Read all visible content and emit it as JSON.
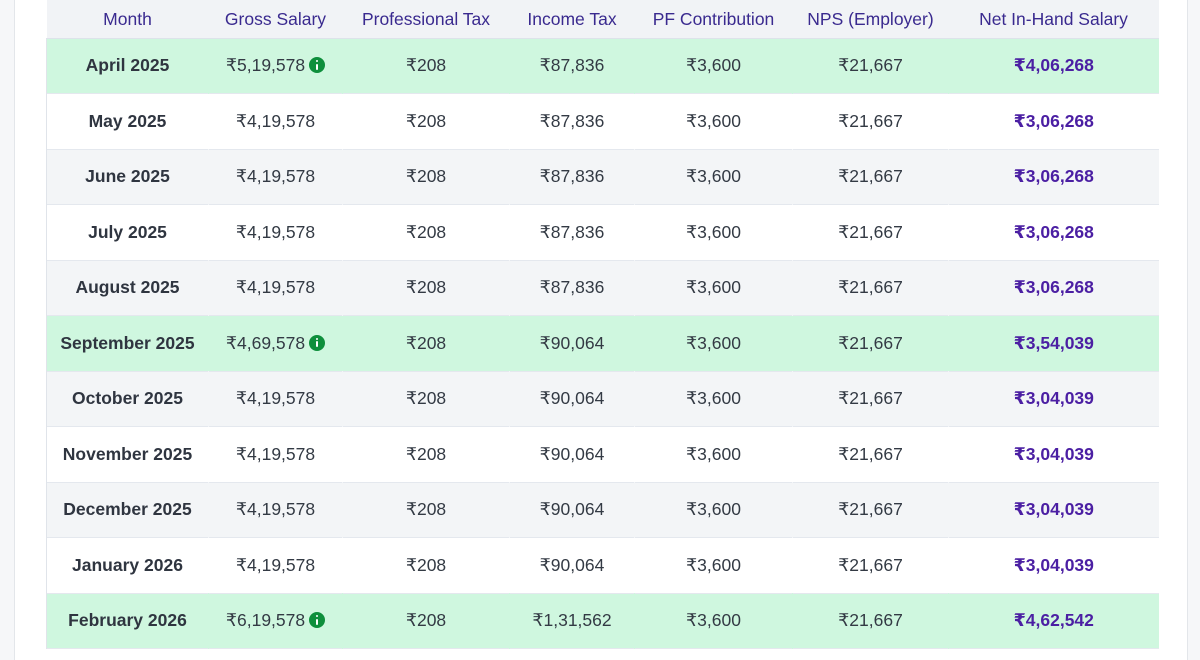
{
  "table": {
    "headers": [
      "Month",
      "Gross Salary",
      "Professional Tax",
      "Income Tax",
      "PF Contribution",
      "NPS (Employer)",
      "Net In-Hand Salary"
    ],
    "rows": [
      {
        "month": "April 2025",
        "gross": "₹5,19,578",
        "pt": "₹208",
        "it": "₹87,836",
        "pf": "₹3,600",
        "nps": "₹21,667",
        "net": "₹4,06,268"
      },
      {
        "month": "May 2025",
        "gross": "₹4,19,578",
        "pt": "₹208",
        "it": "₹87,836",
        "pf": "₹3,600",
        "nps": "₹21,667",
        "net": "₹3,06,268"
      },
      {
        "month": "June 2025",
        "gross": "₹4,19,578",
        "pt": "₹208",
        "it": "₹87,836",
        "pf": "₹3,600",
        "nps": "₹21,667",
        "net": "₹3,06,268"
      },
      {
        "month": "July 2025",
        "gross": "₹4,19,578",
        "pt": "₹208",
        "it": "₹87,836",
        "pf": "₹3,600",
        "nps": "₹21,667",
        "net": "₹3,06,268"
      },
      {
        "month": "August 2025",
        "gross": "₹4,19,578",
        "pt": "₹208",
        "it": "₹87,836",
        "pf": "₹3,600",
        "nps": "₹21,667",
        "net": "₹3,06,268"
      },
      {
        "month": "September 2025",
        "gross": "₹4,69,578",
        "pt": "₹208",
        "it": "₹90,064",
        "pf": "₹3,600",
        "nps": "₹21,667",
        "net": "₹3,54,039"
      },
      {
        "month": "October 2025",
        "gross": "₹4,19,578",
        "pt": "₹208",
        "it": "₹90,064",
        "pf": "₹3,600",
        "nps": "₹21,667",
        "net": "₹3,04,039"
      },
      {
        "month": "November 2025",
        "gross": "₹4,19,578",
        "pt": "₹208",
        "it": "₹90,064",
        "pf": "₹3,600",
        "nps": "₹21,667",
        "net": "₹3,04,039"
      },
      {
        "month": "December 2025",
        "gross": "₹4,19,578",
        "pt": "₹208",
        "it": "₹90,064",
        "pf": "₹3,600",
        "nps": "₹21,667",
        "net": "₹3,04,039"
      },
      {
        "month": "January 2026",
        "gross": "₹4,19,578",
        "pt": "₹208",
        "it": "₹90,064",
        "pf": "₹3,600",
        "nps": "₹21,667",
        "net": "₹3,04,039"
      },
      {
        "month": "February 2026",
        "gross": "₹6,19,578",
        "pt": "₹208",
        "it": "₹1,31,562",
        "pf": "₹3,600",
        "nps": "₹21,667",
        "net": "₹4,62,542"
      }
    ]
  },
  "icons": {
    "bonus_info": "info-icon"
  },
  "colors": {
    "header_text": "#3a2a8f",
    "net_text": "#4b1fa3",
    "bonus_row_bg": "#cff7df",
    "info_icon": "#0e8f3c"
  }
}
